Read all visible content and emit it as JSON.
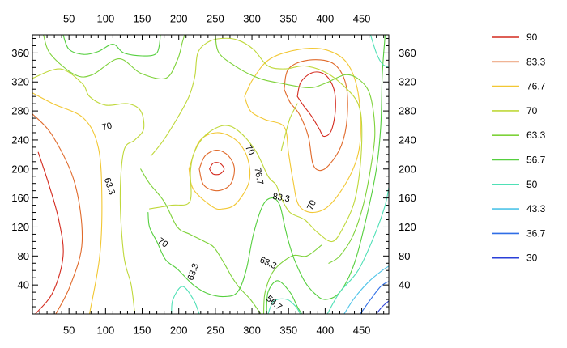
{
  "chart_data": {
    "type": "contour",
    "title": "",
    "xlabel": "",
    "ylabel": "",
    "xlim": [
      0,
      487
    ],
    "ylim": [
      0,
      385
    ],
    "x_ticks": [
      50,
      100,
      150,
      200,
      250,
      300,
      350,
      400,
      450
    ],
    "y_ticks": [
      40,
      80,
      120,
      160,
      200,
      240,
      280,
      320,
      360
    ],
    "grid": false,
    "legend_position": "right",
    "levels": [
      {
        "label": "90",
        "color": "#d42a1e"
      },
      {
        "label": "83.3",
        "color": "#e06a2b"
      },
      {
        "label": "76.7",
        "color": "#f2c733"
      },
      {
        "label": "70",
        "color": "#bfd83a"
      },
      {
        "label": "63.3",
        "color": "#7ed23a"
      },
      {
        "label": "56.7",
        "color": "#55cf3e"
      },
      {
        "label": "50",
        "color": "#4fe0b6"
      },
      {
        "label": "43.3",
        "color": "#4fc4e8"
      },
      {
        "label": "36.7",
        "color": "#2f6ee6"
      },
      {
        "label": "30",
        "color": "#2a3fd8"
      }
    ],
    "contours": [
      {
        "level": "90",
        "points": [
          [
            8,
            223
          ],
          [
            22,
            180
          ],
          [
            36,
            130
          ],
          [
            42,
            80
          ],
          [
            28,
            30
          ],
          [
            4,
            0
          ]
        ]
      },
      {
        "level": "90",
        "points": [
          [
            242,
            200
          ],
          [
            247,
            193
          ],
          [
            256,
            193
          ],
          [
            262,
            200
          ],
          [
            256,
            208
          ],
          [
            247,
            208
          ],
          [
            242,
            200
          ]
        ]
      },
      {
        "level": "90",
        "points": [
          [
            362,
            300
          ],
          [
            367,
            320
          ],
          [
            383,
            333
          ],
          [
            400,
            330
          ],
          [
            412,
            310
          ],
          [
            414,
            280
          ],
          [
            408,
            252
          ],
          [
            398,
            245
          ],
          [
            392,
            255
          ],
          [
            382,
            272
          ],
          [
            370,
            288
          ],
          [
            362,
            300
          ]
        ]
      },
      {
        "level": "83.3",
        "points": [
          [
            0,
            276
          ],
          [
            28,
            245
          ],
          [
            58,
            180
          ],
          [
            68,
            100
          ],
          [
            52,
            40
          ],
          [
            32,
            0
          ]
        ]
      },
      {
        "level": "83.3",
        "points": [
          [
            228,
            200
          ],
          [
            234,
            178
          ],
          [
            252,
            170
          ],
          [
            270,
            178
          ],
          [
            276,
            200
          ],
          [
            268,
            218
          ],
          [
            252,
            226
          ],
          [
            236,
            218
          ],
          [
            228,
            200
          ]
        ]
      },
      {
        "level": "83.3",
        "points": [
          [
            344,
            310
          ],
          [
            350,
            338
          ],
          [
            376,
            350
          ],
          [
            410,
            346
          ],
          [
            428,
            318
          ],
          [
            430,
            270
          ],
          [
            422,
            232
          ],
          [
            405,
            205
          ],
          [
            392,
            198
          ],
          [
            383,
            208
          ],
          [
            377,
            245
          ],
          [
            365,
            275
          ],
          [
            352,
            292
          ],
          [
            344,
            310
          ]
        ]
      },
      {
        "level": "76.7",
        "points": [
          [
            0,
            305
          ],
          [
            28,
            290
          ],
          [
            70,
            270
          ],
          [
            90,
            230
          ],
          [
            95,
            160
          ],
          [
            92,
            80
          ],
          [
            78,
            0
          ]
        ]
      },
      {
        "level": "76.7",
        "points": [
          [
            214,
            200
          ],
          [
            220,
            172
          ],
          [
            246,
            148
          ],
          [
            260,
            145
          ],
          [
            278,
            152
          ],
          [
            296,
            182
          ],
          [
            294,
            215
          ],
          [
            278,
            240
          ],
          [
            252,
            250
          ],
          [
            228,
            238
          ],
          [
            214,
            200
          ]
        ]
      },
      {
        "level": "76.7",
        "points": [
          [
            290,
            300
          ],
          [
            302,
            325
          ],
          [
            325,
            352
          ],
          [
            365,
            365
          ],
          [
            402,
            364
          ],
          [
            430,
            346
          ],
          [
            445,
            305
          ],
          [
            448,
            240
          ],
          [
            436,
            195
          ],
          [
            408,
            152
          ],
          [
            384,
            140
          ],
          [
            364,
            150
          ],
          [
            356,
            185
          ],
          [
            350,
            222
          ],
          [
            344,
            258
          ],
          [
            318,
            268
          ],
          [
            298,
            280
          ],
          [
            290,
            300
          ]
        ]
      },
      {
        "level": "70",
        "points": [
          [
            0,
            325
          ],
          [
            38,
            338
          ],
          [
            68,
            318
          ],
          [
            78,
            300
          ],
          [
            100,
            288
          ],
          [
            130,
            290
          ],
          [
            148,
            280
          ],
          [
            152,
            255
          ],
          [
            140,
            240
          ],
          [
            125,
            225
          ],
          [
            120,
            160
          ],
          [
            125,
            80
          ],
          [
            135,
            40
          ],
          [
            140,
            0
          ]
        ]
      },
      {
        "level": "70",
        "points": [
          [
            162,
            218
          ],
          [
            178,
            238
          ],
          [
            198,
            270
          ],
          [
            214,
            300
          ],
          [
            222,
            328
          ],
          [
            226,
            360
          ],
          [
            240,
            375
          ],
          [
            258,
            380
          ],
          [
            280,
            378
          ],
          [
            302,
            365
          ],
          [
            322,
            342
          ],
          [
            346,
            338
          ],
          [
            372,
            342
          ],
          [
            403,
            332
          ],
          [
            430,
            310
          ],
          [
            445,
            290
          ],
          [
            450,
            260
          ],
          [
            448,
            205
          ],
          [
            440,
            155
          ],
          [
            425,
            120
          ],
          [
            410,
            100
          ],
          [
            390,
            112
          ],
          [
            372,
            130
          ],
          [
            352,
            140
          ],
          [
            340,
            160
          ],
          [
            333,
            178
          ],
          [
            322,
            190
          ],
          [
            305,
            225
          ],
          [
            282,
            252
          ],
          [
            262,
            260
          ],
          [
            238,
            248
          ],
          [
            222,
            225
          ],
          [
            216,
            198
          ],
          [
            215,
            155
          ],
          [
            190,
            150
          ],
          [
            160,
            145
          ]
        ]
      },
      {
        "level": "70",
        "points": [
          [
            340,
            225
          ],
          [
            345,
            245
          ],
          [
            352,
            270
          ],
          [
            362,
            290
          ]
        ]
      },
      {
        "level": "63.3",
        "points": [
          [
            15,
            385
          ],
          [
            25,
            358
          ],
          [
            58,
            330
          ],
          [
            82,
            330
          ],
          [
            118,
            352
          ],
          [
            148,
            332
          ],
          [
            182,
            325
          ],
          [
            198,
            350
          ],
          [
            205,
            375
          ],
          [
            208,
            385
          ]
        ]
      },
      {
        "level": "63.3",
        "points": [
          [
            250,
            385
          ],
          [
            255,
            360
          ],
          [
            280,
            340
          ],
          [
            310,
            325
          ],
          [
            340,
            318
          ],
          [
            378,
            312
          ],
          [
            400,
            318
          ],
          [
            428,
            330
          ],
          [
            448,
            322
          ],
          [
            462,
            300
          ],
          [
            468,
            250
          ],
          [
            462,
            200
          ],
          [
            452,
            150
          ],
          [
            438,
            108
          ],
          [
            420,
            80
          ],
          [
            405,
            70
          ]
        ]
      },
      {
        "level": "63.3",
        "points": [
          [
            148,
            200
          ],
          [
            160,
            180
          ],
          [
            180,
            155
          ],
          [
            198,
            120
          ],
          [
            215,
            110
          ],
          [
            235,
            100
          ],
          [
            248,
            92
          ],
          [
            262,
            70
          ],
          [
            272,
            52
          ],
          [
            283,
            36
          ],
          [
            298,
            20
          ],
          [
            312,
            0
          ]
        ]
      },
      {
        "level": "63.3",
        "points": [
          [
            316,
            0
          ],
          [
            318,
            30
          ],
          [
            330,
            60
          ],
          [
            355,
            80
          ],
          [
            375,
            80
          ],
          [
            395,
            95
          ]
        ]
      },
      {
        "level": "56.7",
        "points": [
          [
            42,
            385
          ],
          [
            50,
            365
          ],
          [
            70,
            358
          ],
          [
            90,
            362
          ],
          [
            110,
            372
          ],
          [
            125,
            360
          ],
          [
            150,
            356
          ],
          [
            170,
            360
          ],
          [
            175,
            385
          ]
        ]
      },
      {
        "level": "56.7",
        "points": [
          [
            158,
            140
          ],
          [
            160,
            120
          ],
          [
            170,
            100
          ],
          [
            182,
            75
          ],
          [
            198,
            62
          ],
          [
            220,
            40
          ],
          [
            240,
            28
          ],
          [
            262,
            24
          ],
          [
            280,
            30
          ],
          [
            292,
            60
          ],
          [
            302,
            110
          ],
          [
            315,
            150
          ],
          [
            328,
            160
          ],
          [
            338,
            150
          ],
          [
            345,
            120
          ],
          [
            350,
            100
          ],
          [
            358,
            75
          ],
          [
            372,
            45
          ],
          [
            386,
            28
          ],
          [
            400,
            20
          ],
          [
            420,
            30
          ],
          [
            440,
            70
          ],
          [
            458,
            140
          ],
          [
            470,
            200
          ],
          [
            476,
            260
          ],
          [
            478,
            330
          ],
          [
            482,
            385
          ]
        ]
      },
      {
        "level": "56.7",
        "points": [
          [
            320,
            0
          ],
          [
            322,
            30
          ],
          [
            335,
            46
          ],
          [
            352,
            30
          ],
          [
            362,
            10
          ],
          [
            368,
            0
          ]
        ]
      },
      {
        "level": "50",
        "points": [
          [
            190,
            0
          ],
          [
            192,
            20
          ],
          [
            205,
            38
          ],
          [
            220,
            20
          ],
          [
            228,
            0
          ]
        ]
      },
      {
        "level": "50",
        "points": [
          [
            322,
            0
          ],
          [
            330,
            18
          ],
          [
            348,
            20
          ],
          [
            360,
            10
          ],
          [
            366,
            0
          ]
        ]
      },
      {
        "level": "50",
        "points": [
          [
            403,
            0
          ],
          [
            420,
            30
          ],
          [
            445,
            60
          ],
          [
            468,
            110
          ],
          [
            482,
            150
          ],
          [
            487,
            175
          ]
        ]
      },
      {
        "level": "50",
        "points": [
          [
            462,
            385
          ],
          [
            470,
            360
          ],
          [
            478,
            345
          ],
          [
            487,
            340
          ]
        ]
      },
      {
        "level": "43.3",
        "points": [
          [
            426,
            0
          ],
          [
            440,
            22
          ],
          [
            460,
            45
          ],
          [
            478,
            60
          ],
          [
            487,
            66
          ]
        ]
      },
      {
        "level": "36.7",
        "points": [
          [
            448,
            0
          ],
          [
            462,
            20
          ],
          [
            476,
            38
          ],
          [
            487,
            45
          ]
        ]
      },
      {
        "level": "30",
        "points": [
          [
            470,
            0
          ],
          [
            478,
            10
          ],
          [
            487,
            18
          ]
        ]
      }
    ],
    "contour_labels": [
      {
        "text": "70",
        "x": 102,
        "y": 258,
        "angle": -15
      },
      {
        "text": "63.3",
        "x": 105,
        "y": 176,
        "angle": 72
      },
      {
        "text": "70",
        "x": 178,
        "y": 98,
        "angle": 35
      },
      {
        "text": "63.3",
        "x": 220,
        "y": 58,
        "angle": -70
      },
      {
        "text": "70",
        "x": 297,
        "y": 226,
        "angle": 60
      },
      {
        "text": "76.7",
        "x": 309,
        "y": 190,
        "angle": 80
      },
      {
        "text": "83.3",
        "x": 340,
        "y": 160,
        "angle": 10
      },
      {
        "text": "70",
        "x": 382,
        "y": 150,
        "angle": -65
      },
      {
        "text": "63.3",
        "x": 322,
        "y": 70,
        "angle": 25
      },
      {
        "text": "56.7",
        "x": 330,
        "y": 15,
        "angle": 40
      }
    ]
  }
}
